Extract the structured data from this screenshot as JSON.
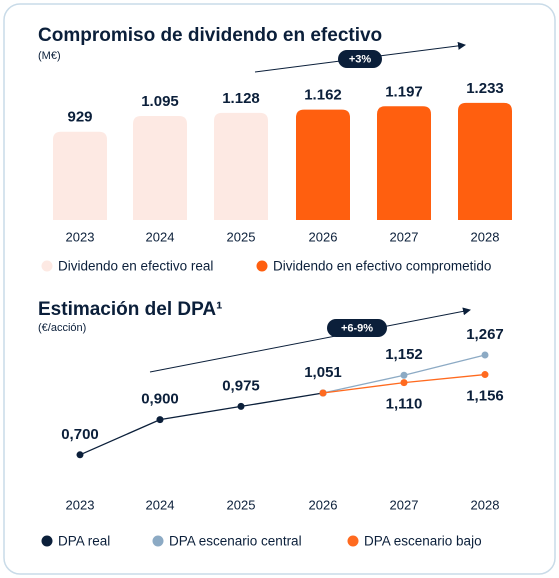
{
  "chart_data": [
    {
      "type": "bar",
      "title": "Compromiso de dividendo en efectivo",
      "subtitle": "(M€)",
      "annotation": "+3%",
      "categories": [
        "2023",
        "2024",
        "2025",
        "2026",
        "2027",
        "2028"
      ],
      "series": [
        {
          "name": "Dividendo en efectivo real",
          "color": "#fde9e3",
          "values": [
            929,
            1095,
            1128,
            null,
            null,
            null
          ],
          "value_labels": [
            "929",
            "1.095",
            "1.128",
            null,
            null,
            null
          ]
        },
        {
          "name": "Dividendo en efectivo comprometido",
          "color": "#ff5f0f",
          "values": [
            null,
            null,
            null,
            1162,
            1197,
            1233
          ],
          "value_labels": [
            null,
            null,
            null,
            "1.162",
            "1.197",
            "1.233"
          ]
        }
      ],
      "ylim": [
        0,
        1400
      ]
    },
    {
      "type": "line",
      "title": "Estimación del DPA¹",
      "subtitle": "(€/acción)",
      "annotation": "+6-9%",
      "categories": [
        "2023",
        "2024",
        "2025",
        "2026",
        "2027",
        "2028"
      ],
      "series": [
        {
          "name": "DPA real",
          "color": "#0b1f3a",
          "values": [
            0.7,
            0.9,
            0.975,
            1.051,
            null,
            null
          ],
          "value_labels": [
            "0,700",
            "0,900",
            "0,975",
            "1,051",
            null,
            null
          ]
        },
        {
          "name": "DPA escenario central",
          "color": "#8caac4",
          "values": [
            null,
            null,
            null,
            1.051,
            1.152,
            1.267
          ],
          "value_labels": [
            null,
            null,
            null,
            null,
            "1,152",
            "1,267"
          ]
        },
        {
          "name": "DPA escenario bajo",
          "color": "#ff6a1f",
          "values": [
            null,
            null,
            null,
            1.051,
            1.11,
            1.156
          ],
          "value_labels": [
            null,
            null,
            null,
            null,
            "1,110",
            "1,156"
          ]
        }
      ],
      "ylim": [
        0.5,
        1.5
      ]
    }
  ]
}
